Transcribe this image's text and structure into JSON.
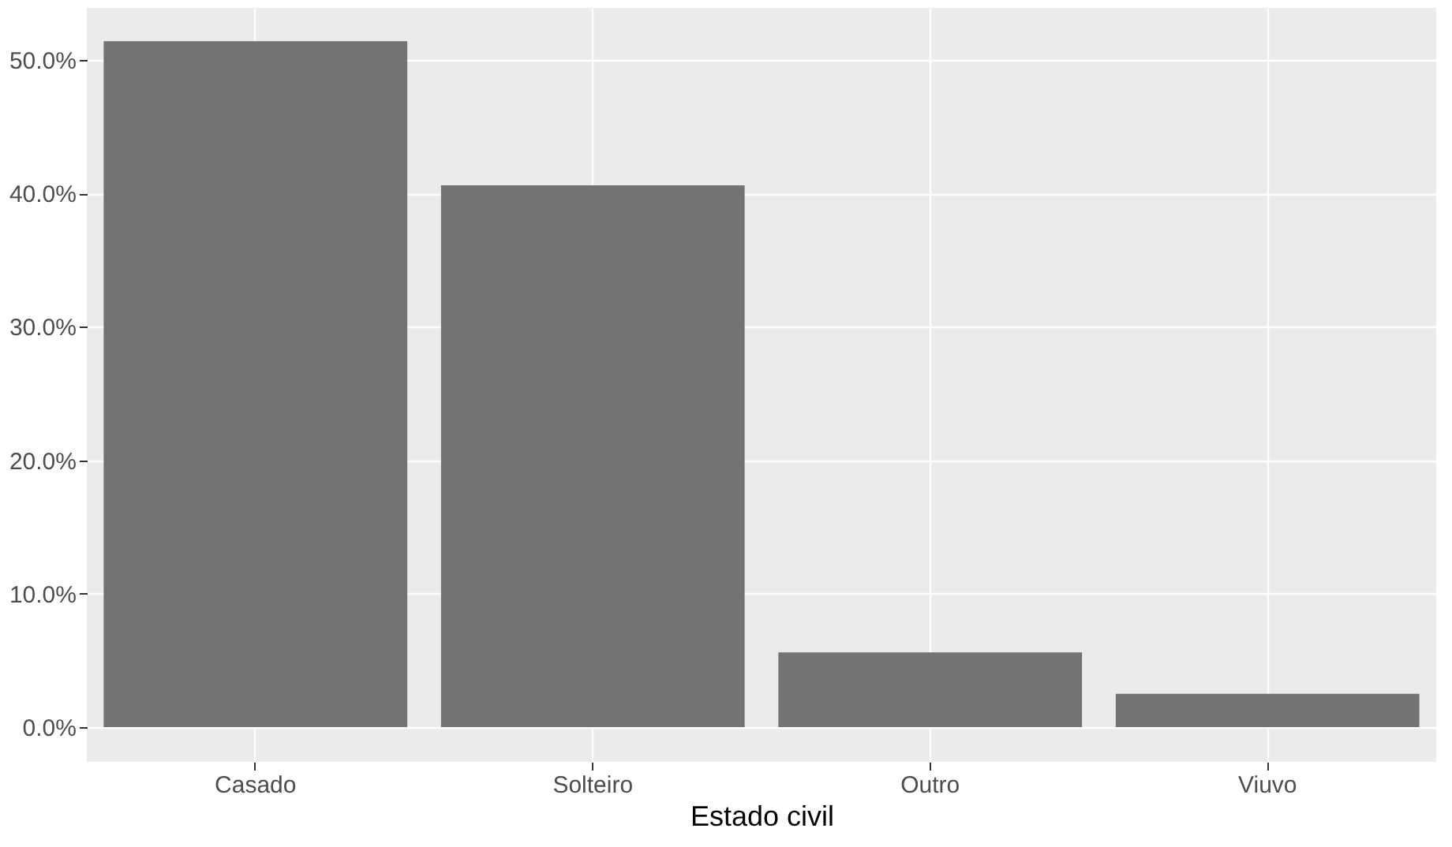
{
  "chart_data": {
    "type": "bar",
    "xlabel": "Estado civil",
    "categories": [
      "Casado",
      "Solteiro",
      "Outro",
      "Viuvo"
    ],
    "values": [
      51.4,
      40.6,
      5.6,
      2.5
    ],
    "color": "#737373",
    "ylim": [
      -2.6,
      53.9
    ],
    "yticks": [
      {
        "value": 0,
        "label": "0.0%"
      },
      {
        "value": 10,
        "label": "10.0%"
      },
      {
        "value": 20,
        "label": "20.0%"
      },
      {
        "value": 30,
        "label": "30.0%"
      },
      {
        "value": 40,
        "label": "40.0%"
      },
      {
        "value": 50,
        "label": "50.0%"
      }
    ],
    "grid": true
  }
}
